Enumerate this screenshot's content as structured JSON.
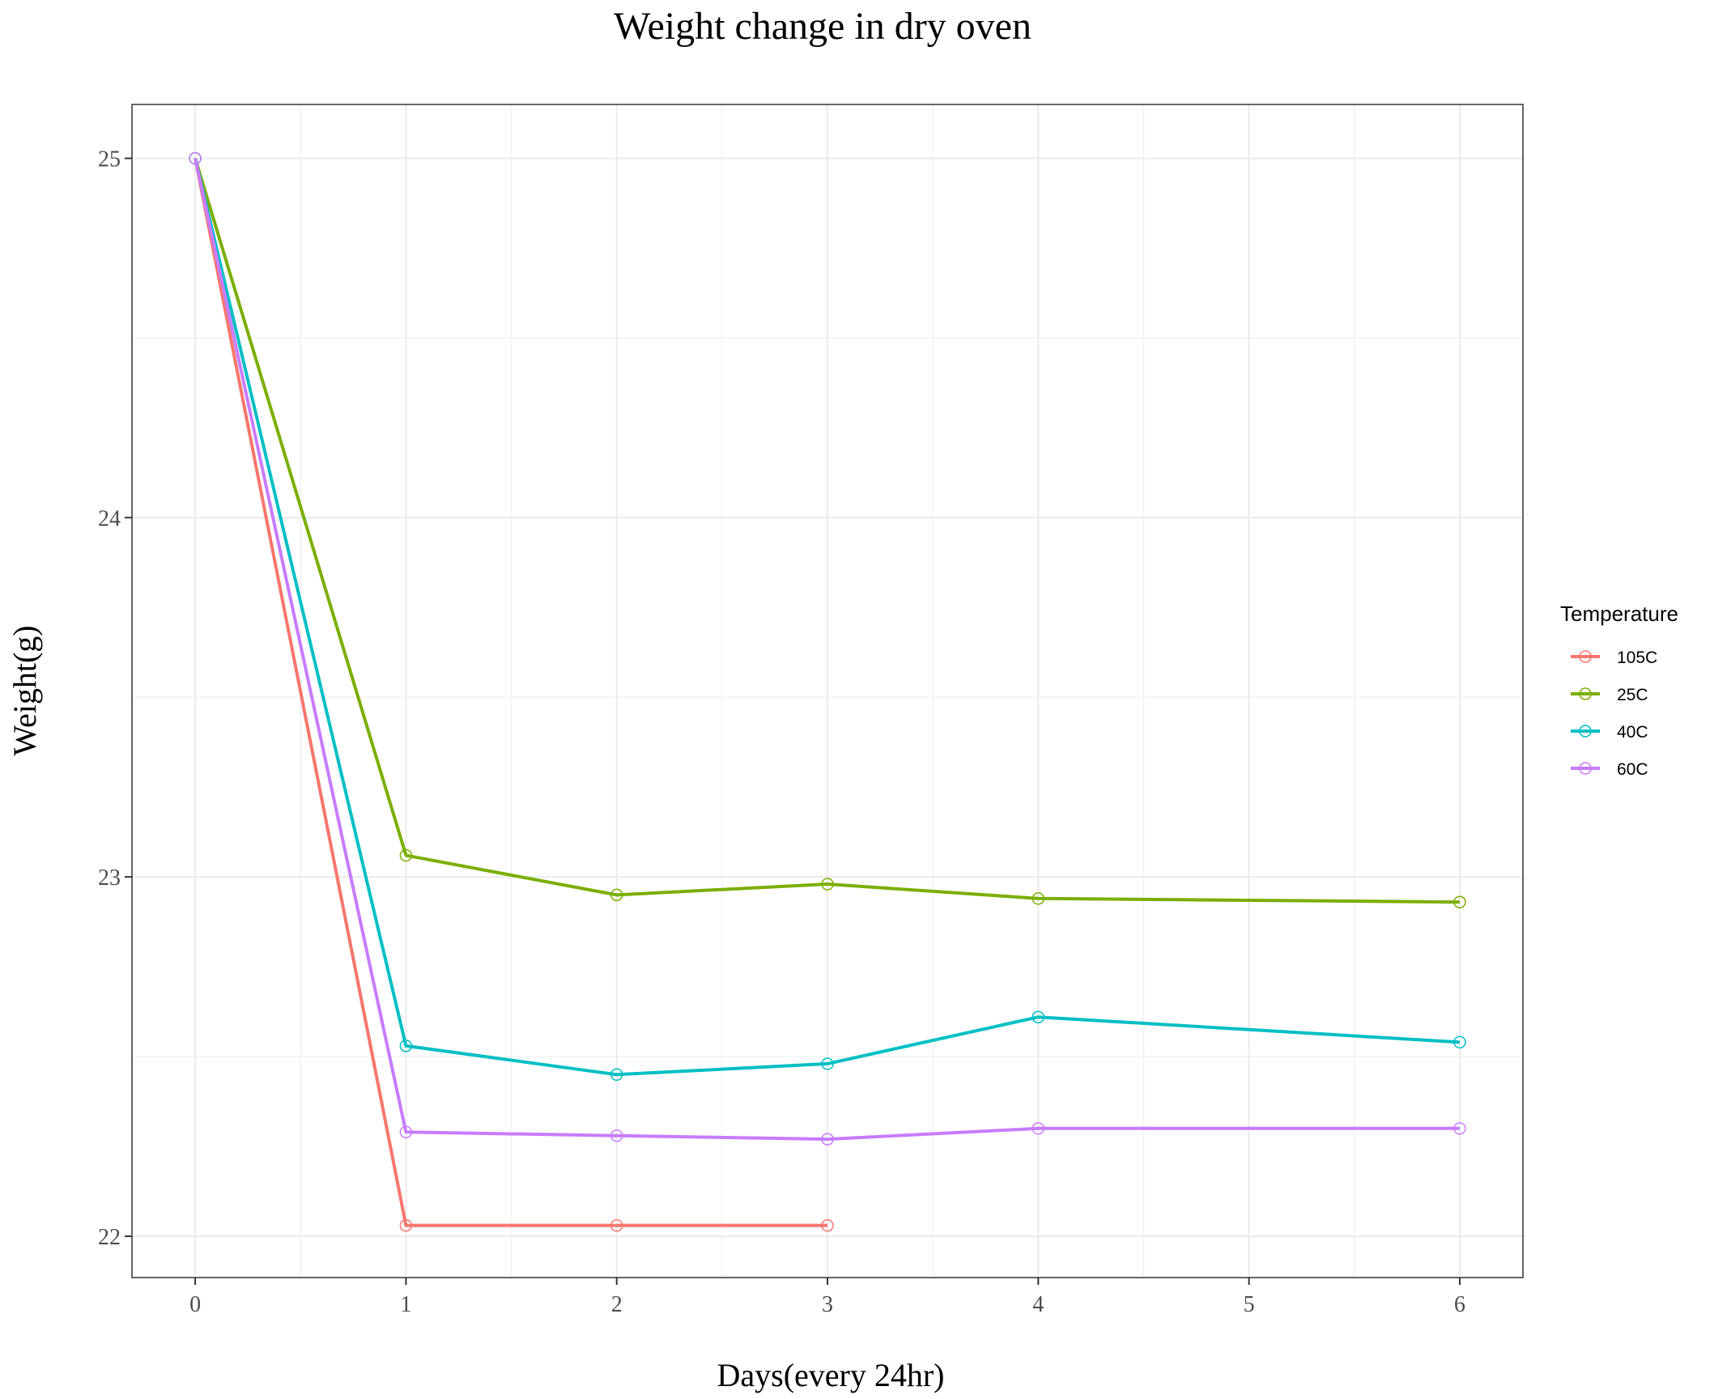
{
  "chart_data": {
    "type": "line",
    "title": "Weight change in dry oven",
    "xlabel": "Days(every 24hr)",
    "ylabel": "Weight(g)",
    "xlim": [
      -0.3,
      6.3
    ],
    "ylim": [
      21.885,
      25.15
    ],
    "x_ticks": [
      0,
      1,
      2,
      3,
      4,
      5,
      6
    ],
    "y_ticks": [
      22,
      23,
      24,
      25
    ],
    "grid": true,
    "legend": {
      "title": "Temperature",
      "position": "right"
    },
    "series": [
      {
        "name": "105C",
        "color": "#F8766D",
        "x": [
          0,
          1,
          2,
          3
        ],
        "y": [
          25.0,
          22.03,
          22.03,
          22.03
        ]
      },
      {
        "name": "25C",
        "color": "#7CAE00",
        "x": [
          0,
          1,
          2,
          3,
          4,
          6
        ],
        "y": [
          25.0,
          23.06,
          22.95,
          22.98,
          22.94,
          22.93
        ]
      },
      {
        "name": "40C",
        "color": "#00BFC4",
        "x": [
          0,
          1,
          2,
          3,
          4,
          6
        ],
        "y": [
          25.0,
          22.53,
          22.45,
          22.48,
          22.61,
          22.54
        ]
      },
      {
        "name": "60C",
        "color": "#C77CFF",
        "x": [
          0,
          1,
          2,
          3,
          4,
          6
        ],
        "y": [
          25.0,
          22.29,
          22.28,
          22.27,
          22.3,
          22.3
        ]
      }
    ]
  }
}
